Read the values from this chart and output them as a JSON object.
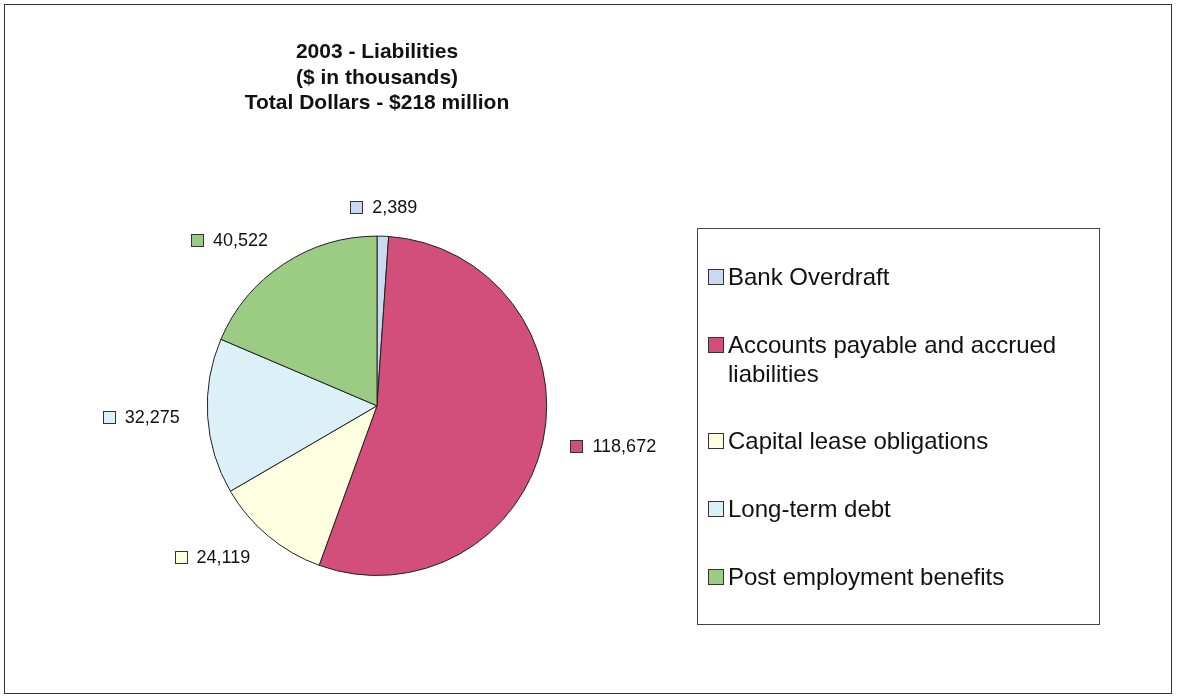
{
  "chart_data": {
    "type": "pie",
    "title": "2003 - Liabilities\n($ in thousands)\nTotal Dollars - $218 million",
    "categories": [
      "Bank Overdraft",
      "Accounts payable and accrued liabilities",
      "Capital lease obligations",
      "Long-term debt",
      "Post employment benefits"
    ],
    "values": [
      2389,
      118672,
      24119,
      32275,
      40522
    ],
    "value_labels": [
      "2,389",
      "118,672",
      "24,119",
      "32,275",
      "40,522"
    ],
    "colors": [
      "#c9d9f2",
      "#d24f7c",
      "#ffffe1",
      "#dcf1f7",
      "#9ccc84"
    ],
    "legend": "right"
  }
}
